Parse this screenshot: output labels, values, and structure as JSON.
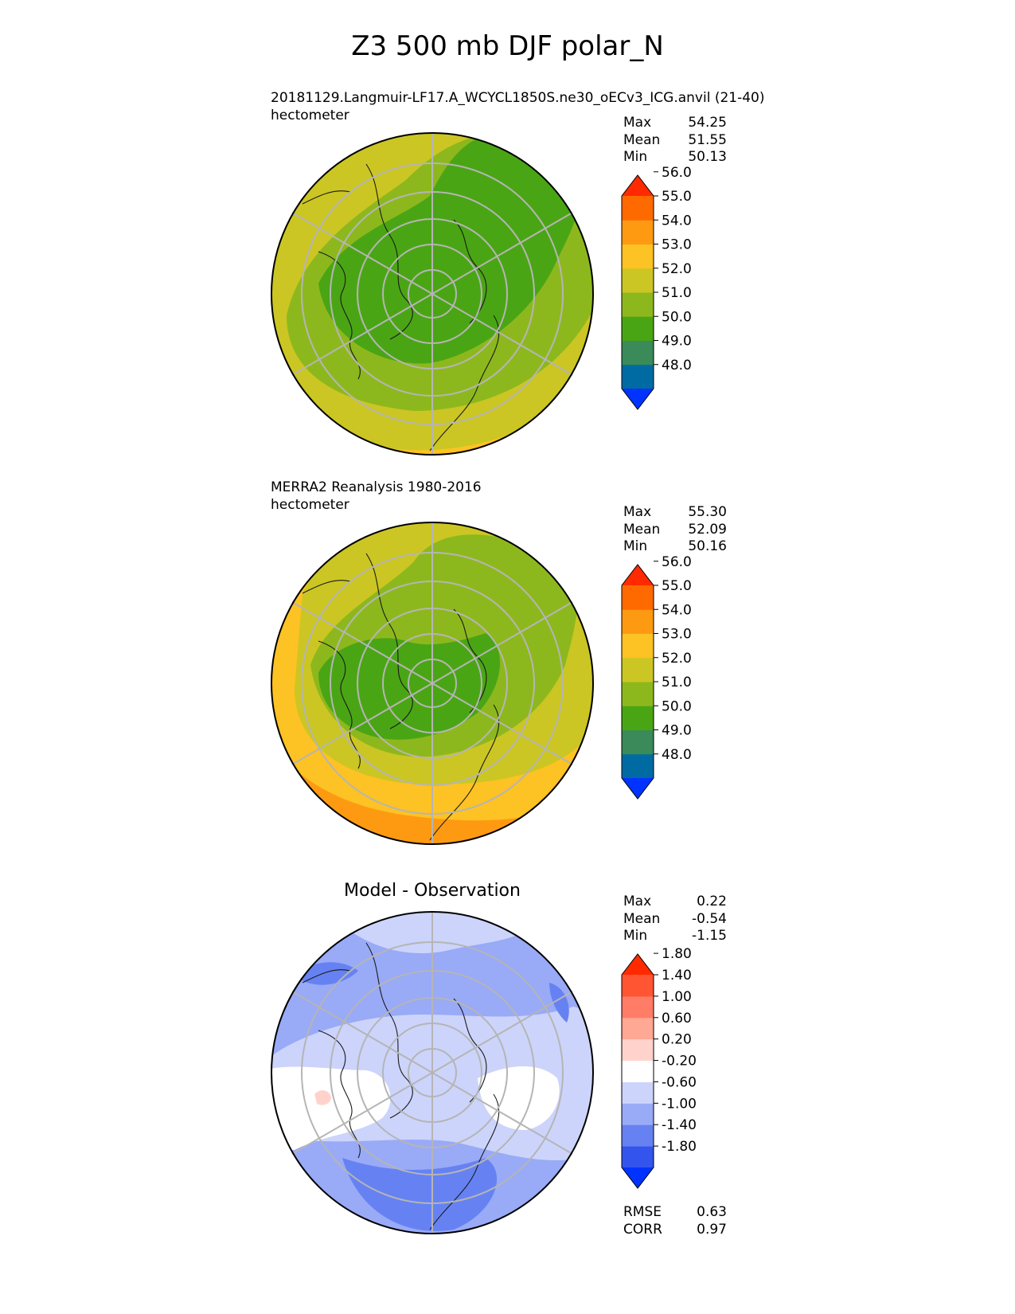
{
  "title": "Z3 500 mb DJF polar_N",
  "colors": {
    "abs_levels": [
      "#0033ff",
      "#006ba3",
      "#3a8a5a",
      "#4aa514",
      "#8db81d",
      "#cbc623",
      "#fdc223",
      "#fd9a12",
      "#ff6a00",
      "#ff2a00"
    ],
    "diff_levels": [
      "#0033ff",
      "#3355ee",
      "#6682f2",
      "#99aaf7",
      "#ccd4fb",
      "#ffffff",
      "#ffd3cc",
      "#ffa894",
      "#ff7c66",
      "#ff5533",
      "#ff2a00"
    ]
  },
  "chart_data": [
    {
      "type": "heatmap",
      "projection": "polar_N",
      "title": "20181129.Langmuir-LF17.A_WCYCL1850S.ne30_oECv3_ICG.anvil (21-40)",
      "units": "hectometer",
      "stats": [
        {
          "label": "Max",
          "value": "54.25"
        },
        {
          "label": "Mean",
          "value": "51.55"
        },
        {
          "label": "Min",
          "value": "50.13"
        }
      ],
      "colorbar": {
        "levels": [
          48.0,
          49.0,
          50.0,
          51.0,
          52.0,
          53.0,
          54.0,
          55.0,
          56.0
        ],
        "tick_labels": [
          "48.0",
          "49.0",
          "50.0",
          "51.0",
          "52.0",
          "53.0",
          "54.0",
          "55.0",
          "56.0"
        ],
        "extend": "both"
      }
    },
    {
      "type": "heatmap",
      "projection": "polar_N",
      "title": "MERRA2 Reanalysis 1980-2016",
      "units": "hectometer",
      "stats": [
        {
          "label": "Max",
          "value": "55.30"
        },
        {
          "label": "Mean",
          "value": "52.09"
        },
        {
          "label": "Min",
          "value": "50.16"
        }
      ],
      "colorbar": {
        "levels": [
          48.0,
          49.0,
          50.0,
          51.0,
          52.0,
          53.0,
          54.0,
          55.0,
          56.0
        ],
        "tick_labels": [
          "48.0",
          "49.0",
          "50.0",
          "51.0",
          "52.0",
          "53.0",
          "54.0",
          "55.0",
          "56.0"
        ],
        "extend": "both"
      }
    },
    {
      "type": "heatmap",
      "projection": "polar_N",
      "title": "Model - Observation",
      "stats": [
        {
          "label": "Max",
          "value": "0.22"
        },
        {
          "label": "Mean",
          "value": "-0.54"
        },
        {
          "label": "Min",
          "value": "-1.15"
        }
      ],
      "colorbar": {
        "levels": [
          -1.8,
          -1.4,
          -1.0,
          -0.6,
          -0.2,
          0.2,
          0.6,
          1.0,
          1.4,
          1.8
        ],
        "tick_labels": [
          "-1.80",
          "-1.40",
          "-1.00",
          "-0.60",
          "-0.20",
          "0.20",
          "0.60",
          "1.00",
          "1.40",
          "1.80"
        ],
        "extend": "both"
      },
      "metrics": [
        {
          "label": "RMSE",
          "value": "0.63"
        },
        {
          "label": "CORR",
          "value": "0.97"
        }
      ]
    }
  ]
}
